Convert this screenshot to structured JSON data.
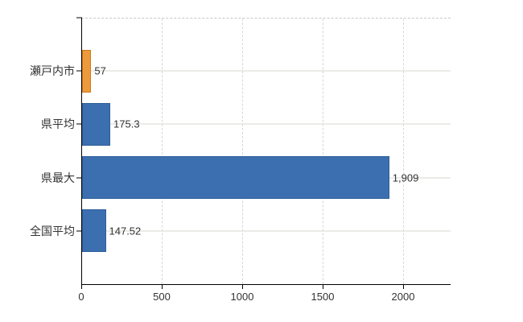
{
  "colors": {
    "background": "#ffffff",
    "axis": "#000000",
    "vertical_gridline": "#d7d7da",
    "horizontal_gridline": "#d4dad2",
    "text": "#333333",
    "bar_blue": "#3c6faf",
    "bar_blue_border": "#2e5e99",
    "bar_orange": "#ed9a3c",
    "bar_orange_border": "#c97b20"
  },
  "chart_data": {
    "type": "bar",
    "orientation": "horizontal",
    "title": "",
    "xlabel": "",
    "ylabel": "",
    "legend": "none",
    "categories": [
      "瀬戸内市",
      "県平均",
      "県最大",
      "全国平均"
    ],
    "values": [
      57,
      175.3,
      1909,
      147.52
    ],
    "value_labels": [
      "57",
      "175.3",
      "1,909",
      "147.52"
    ],
    "bar_colors": [
      "#ed9a3c",
      "#3c6faf",
      "#3c6faf",
      "#3c6faf"
    ],
    "bar_border_colors": [
      "#c97b20",
      "#2e5e99",
      "#2e5e99",
      "#2e5e99"
    ],
    "x_ticks": [
      0,
      500,
      1000,
      1500,
      2000
    ],
    "x_tick_labels": [
      "0",
      "500",
      "1000",
      "1500",
      "2000"
    ],
    "xlim": [
      0,
      2295
    ],
    "grid": "vertical dashed gridlines at x ticks; horizontal light line through each category row"
  }
}
